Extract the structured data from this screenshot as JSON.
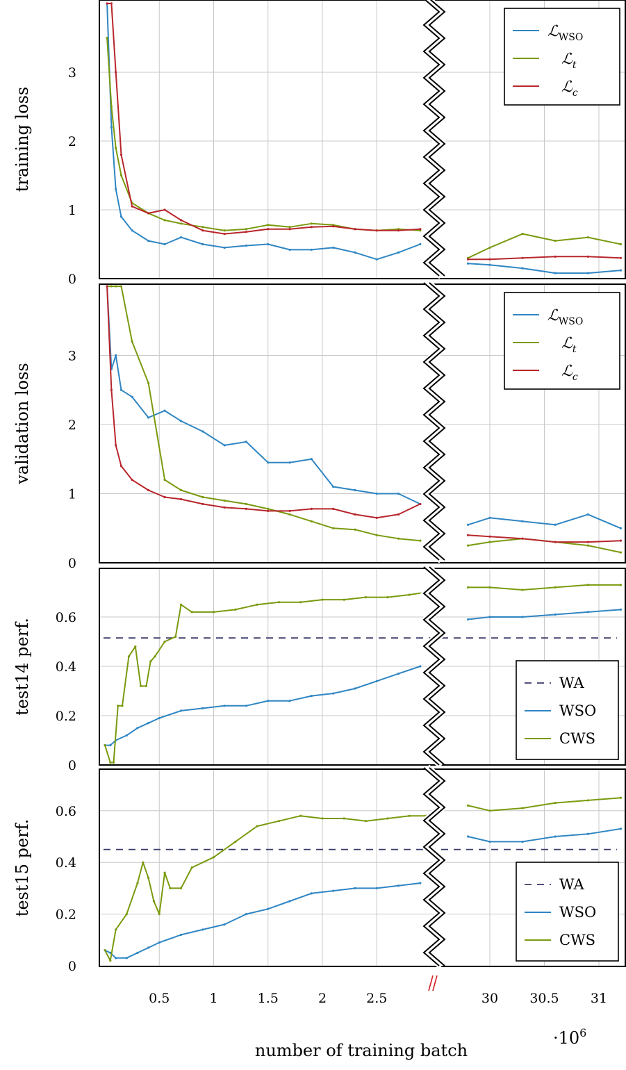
{
  "figure": {
    "xlabel": "number of training batch",
    "x_multiplier": "·10",
    "x_multiplier_exp": "6"
  },
  "colors": {
    "wso": "#2f86c3",
    "t": "#7a9a0e",
    "c": "#b8262c",
    "wa": "#3a3a6a",
    "grid": "#c8c8c8",
    "break_mark": "#d22020"
  },
  "chart_data": [
    {
      "type": "line",
      "ylabel": "training loss",
      "ylim": [
        0,
        4
      ],
      "yticks": [
        "0",
        "1",
        "2",
        "3"
      ],
      "xticks_left": [
        "0.5",
        "1",
        "1.5",
        "2",
        "2.5"
      ],
      "xticks_right": [
        "30",
        "30.5",
        "31"
      ],
      "grid": true,
      "legend_position": "top-right",
      "axis_break": {
        "left_segment_end": 3.0,
        "right_segment_start": 29.8
      },
      "series": [
        {
          "name": "ℒ",
          "sub": "WSO",
          "color": "wso",
          "x": [
            0.02,
            0.06,
            0.1,
            0.15,
            0.25,
            0.4,
            0.55,
            0.7,
            0.9,
            1.1,
            1.3,
            1.5,
            1.7,
            1.9,
            2.1,
            2.3,
            2.5,
            2.7,
            2.9,
            29.8,
            30.0,
            30.3,
            30.6,
            30.9,
            31.2
          ],
          "y": [
            4.0,
            2.2,
            1.3,
            0.9,
            0.7,
            0.55,
            0.5,
            0.6,
            0.5,
            0.45,
            0.48,
            0.5,
            0.42,
            0.42,
            0.45,
            0.38,
            0.28,
            0.38,
            0.5,
            0.22,
            0.2,
            0.15,
            0.08,
            0.08,
            0.12
          ]
        },
        {
          "name": "ℒ",
          "sub": "t",
          "color": "t",
          "x": [
            0.02,
            0.06,
            0.1,
            0.15,
            0.25,
            0.4,
            0.55,
            0.7,
            0.9,
            1.1,
            1.3,
            1.5,
            1.7,
            1.9,
            2.1,
            2.3,
            2.5,
            2.7,
            2.9,
            29.8,
            30.0,
            30.3,
            30.6,
            30.9,
            31.2
          ],
          "y": [
            3.5,
            2.5,
            1.9,
            1.5,
            1.1,
            0.95,
            0.85,
            0.8,
            0.75,
            0.7,
            0.72,
            0.78,
            0.75,
            0.8,
            0.78,
            0.72,
            0.7,
            0.72,
            0.7,
            0.3,
            0.45,
            0.65,
            0.55,
            0.6,
            0.5
          ]
        },
        {
          "name": "ℒ",
          "sub": "c",
          "color": "c",
          "x": [
            0.02,
            0.06,
            0.1,
            0.15,
            0.25,
            0.4,
            0.55,
            0.7,
            0.9,
            1.1,
            1.3,
            1.5,
            1.7,
            1.9,
            2.1,
            2.3,
            2.5,
            2.7,
            2.9,
            29.8,
            30.0,
            30.3,
            30.6,
            30.9,
            31.2
          ],
          "y": [
            4.0,
            4.0,
            3.0,
            1.8,
            1.05,
            0.95,
            1.0,
            0.85,
            0.7,
            0.65,
            0.68,
            0.72,
            0.72,
            0.75,
            0.76,
            0.72,
            0.7,
            0.7,
            0.72,
            0.28,
            0.28,
            0.3,
            0.32,
            0.32,
            0.3
          ]
        }
      ]
    },
    {
      "type": "line",
      "ylabel": "validation loss",
      "ylim": [
        0,
        4
      ],
      "yticks": [
        "0",
        "1",
        "2",
        "3"
      ],
      "xticks_left": [
        "0.5",
        "1",
        "1.5",
        "2",
        "2.5"
      ],
      "xticks_right": [
        "30",
        "30.5",
        "31"
      ],
      "grid": true,
      "legend_position": "top-right",
      "axis_break": {
        "left_segment_end": 3.0,
        "right_segment_start": 29.8
      },
      "series": [
        {
          "name": "ℒ",
          "sub": "WSO",
          "color": "wso",
          "x": [
            0.02,
            0.06,
            0.1,
            0.15,
            0.25,
            0.4,
            0.55,
            0.7,
            0.9,
            1.1,
            1.3,
            1.5,
            1.7,
            1.9,
            2.1,
            2.3,
            2.5,
            2.7,
            2.9,
            29.8,
            30.0,
            30.3,
            30.6,
            30.9,
            31.2
          ],
          "y": [
            4.0,
            2.8,
            3.0,
            2.5,
            2.4,
            2.1,
            2.2,
            2.05,
            1.9,
            1.7,
            1.75,
            1.45,
            1.45,
            1.5,
            1.1,
            1.05,
            1.0,
            1.0,
            0.85,
            0.55,
            0.65,
            0.6,
            0.55,
            0.7,
            0.5
          ]
        },
        {
          "name": "ℒ",
          "sub": "t",
          "color": "t",
          "x": [
            0.02,
            0.06,
            0.1,
            0.15,
            0.25,
            0.4,
            0.55,
            0.7,
            0.9,
            1.1,
            1.3,
            1.5,
            1.7,
            1.9,
            2.1,
            2.3,
            2.5,
            2.7,
            2.9,
            29.8,
            30.0,
            30.3,
            30.6,
            30.9,
            31.2
          ],
          "y": [
            4.0,
            4.0,
            4.0,
            4.0,
            3.2,
            2.6,
            1.2,
            1.05,
            0.95,
            0.9,
            0.85,
            0.78,
            0.7,
            0.6,
            0.5,
            0.48,
            0.4,
            0.35,
            0.32,
            0.25,
            0.3,
            0.35,
            0.3,
            0.25,
            0.15
          ]
        },
        {
          "name": "ℒ",
          "sub": "c",
          "color": "c",
          "x": [
            0.02,
            0.06,
            0.1,
            0.15,
            0.25,
            0.4,
            0.55,
            0.7,
            0.9,
            1.1,
            1.3,
            1.5,
            1.7,
            1.9,
            2.1,
            2.3,
            2.5,
            2.7,
            2.9,
            29.8,
            30.0,
            30.3,
            30.6,
            30.9,
            31.2
          ],
          "y": [
            4.0,
            2.5,
            1.7,
            1.4,
            1.2,
            1.05,
            0.95,
            0.92,
            0.85,
            0.8,
            0.78,
            0.75,
            0.75,
            0.78,
            0.78,
            0.7,
            0.65,
            0.7,
            0.85,
            0.4,
            0.38,
            0.35,
            0.3,
            0.3,
            0.32
          ]
        }
      ]
    },
    {
      "type": "line",
      "ylabel": "test14 perf.",
      "ylim": [
        0,
        0.75
      ],
      "yticks": [
        "0",
        "0.2",
        "0.4",
        "0.6"
      ],
      "xticks_left": [
        "0.5",
        "1",
        "1.5",
        "2",
        "2.5"
      ],
      "xticks_right": [
        "30",
        "30.5",
        "31"
      ],
      "grid": true,
      "legend_position": "bottom-right",
      "axis_break": {
        "left_segment_end": 3.0,
        "right_segment_start": 29.8
      },
      "series": [
        {
          "name": "WA",
          "color": "wa",
          "dashed": true,
          "const": 0.515
        },
        {
          "name": "WSO",
          "color": "wso",
          "x": [
            0.0,
            0.05,
            0.1,
            0.2,
            0.3,
            0.4,
            0.5,
            0.7,
            0.9,
            1.1,
            1.3,
            1.5,
            1.7,
            1.9,
            2.1,
            2.3,
            2.5,
            2.7,
            2.9,
            29.8,
            30.0,
            30.3,
            30.6,
            30.9,
            31.2
          ],
          "y": [
            0.08,
            0.08,
            0.1,
            0.12,
            0.15,
            0.17,
            0.19,
            0.22,
            0.23,
            0.24,
            0.24,
            0.26,
            0.26,
            0.28,
            0.29,
            0.31,
            0.34,
            0.37,
            0.4,
            0.59,
            0.6,
            0.6,
            0.61,
            0.62,
            0.63
          ]
        },
        {
          "name": "CWS",
          "color": "t",
          "x": [
            0.0,
            0.05,
            0.08,
            0.12,
            0.16,
            0.22,
            0.28,
            0.33,
            0.38,
            0.42,
            0.46,
            0.55,
            0.65,
            0.7,
            0.8,
            1.0,
            1.2,
            1.4,
            1.6,
            1.8,
            2.0,
            2.2,
            2.4,
            2.6,
            2.8,
            2.95,
            29.8,
            30.0,
            30.3,
            30.6,
            30.9,
            31.2
          ],
          "y": [
            0.08,
            0.01,
            0.01,
            0.24,
            0.24,
            0.44,
            0.48,
            0.32,
            0.32,
            0.42,
            0.44,
            0.5,
            0.52,
            0.65,
            0.62,
            0.62,
            0.63,
            0.65,
            0.66,
            0.66,
            0.67,
            0.67,
            0.68,
            0.68,
            0.69,
            0.7,
            0.72,
            0.72,
            0.71,
            0.72,
            0.73,
            0.73
          ]
        }
      ]
    },
    {
      "type": "line",
      "ylabel": "test15 perf.",
      "ylim": [
        0,
        0.75
      ],
      "yticks": [
        "0",
        "0.2",
        "0.4",
        "0.6"
      ],
      "xticks_left": [
        "0.5",
        "1",
        "1.5",
        "2",
        "2.5"
      ],
      "xticks_right": [
        "30",
        "30.5",
        "31"
      ],
      "grid": true,
      "legend_position": "bottom-right",
      "axis_break": {
        "left_segment_end": 3.0,
        "right_segment_start": 29.8
      },
      "series": [
        {
          "name": "WA",
          "color": "wa",
          "dashed": true,
          "const": 0.45
        },
        {
          "name": "WSO",
          "color": "wso",
          "x": [
            0.0,
            0.05,
            0.1,
            0.2,
            0.3,
            0.4,
            0.5,
            0.7,
            0.9,
            1.1,
            1.3,
            1.5,
            1.7,
            1.9,
            2.1,
            2.3,
            2.5,
            2.7,
            2.9,
            29.8,
            30.0,
            30.3,
            30.6,
            30.9,
            31.2
          ],
          "y": [
            0.06,
            0.05,
            0.03,
            0.03,
            0.05,
            0.07,
            0.09,
            0.12,
            0.14,
            0.16,
            0.2,
            0.22,
            0.25,
            0.28,
            0.29,
            0.3,
            0.3,
            0.31,
            0.32,
            0.5,
            0.48,
            0.48,
            0.5,
            0.51,
            0.53
          ]
        },
        {
          "name": "CWS",
          "color": "t",
          "x": [
            0.0,
            0.05,
            0.1,
            0.2,
            0.3,
            0.35,
            0.4,
            0.45,
            0.5,
            0.55,
            0.6,
            0.7,
            0.8,
            1.0,
            1.2,
            1.4,
            1.6,
            1.8,
            2.0,
            2.2,
            2.4,
            2.6,
            2.8,
            2.95,
            29.8,
            30.0,
            30.3,
            30.6,
            30.9,
            31.2
          ],
          "y": [
            0.06,
            0.02,
            0.14,
            0.2,
            0.32,
            0.4,
            0.34,
            0.25,
            0.2,
            0.36,
            0.3,
            0.3,
            0.38,
            0.42,
            0.48,
            0.54,
            0.56,
            0.58,
            0.57,
            0.57,
            0.56,
            0.57,
            0.58,
            0.58,
            0.62,
            0.6,
            0.61,
            0.63,
            0.64,
            0.65
          ]
        }
      ]
    }
  ]
}
